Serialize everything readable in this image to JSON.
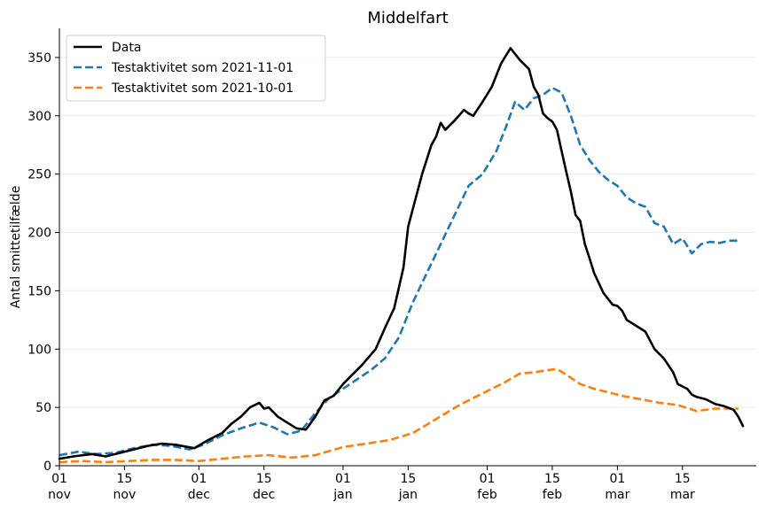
{
  "chart_data": {
    "type": "line",
    "title": "Middelfart",
    "xlabel": "",
    "ylabel": "Antal smittetilfælde",
    "ylim": [
      0,
      375
    ],
    "yticks": [
      0,
      50,
      100,
      150,
      200,
      250,
      300,
      350
    ],
    "grid": "horizontal",
    "legend_position": "top-left",
    "xlim": [
      "2021-11-01",
      "2022-03-28"
    ],
    "xticks": [
      {
        "date": "2021-11-01",
        "day": "01",
        "month": "nov"
      },
      {
        "date": "2021-11-15",
        "day": "15",
        "month": "nov"
      },
      {
        "date": "2021-12-01",
        "day": "01",
        "month": "dec"
      },
      {
        "date": "2021-12-15",
        "day": "15",
        "month": "dec"
      },
      {
        "date": "2022-01-01",
        "day": "01",
        "month": "jan"
      },
      {
        "date": "2022-01-15",
        "day": "15",
        "month": "jan"
      },
      {
        "date": "2022-02-01",
        "day": "01",
        "month": "feb"
      },
      {
        "date": "2022-02-15",
        "day": "15",
        "month": "feb"
      },
      {
        "date": "2022-03-01",
        "day": "01",
        "month": "mar"
      },
      {
        "date": "2022-03-15",
        "day": "15",
        "month": "mar"
      }
    ],
    "series": [
      {
        "name": "Data",
        "color": "#000000",
        "style": "solid",
        "points": [
          [
            "2021-11-01",
            6
          ],
          [
            "2021-11-04",
            8
          ],
          [
            "2021-11-08",
            10
          ],
          [
            "2021-11-11",
            8
          ],
          [
            "2021-11-14",
            11
          ],
          [
            "2021-11-17",
            14
          ],
          [
            "2021-11-20",
            17
          ],
          [
            "2021-11-23",
            19
          ],
          [
            "2021-11-26",
            18
          ],
          [
            "2021-11-30",
            15
          ],
          [
            "2021-12-03",
            22
          ],
          [
            "2021-12-06",
            28
          ],
          [
            "2021-12-08",
            36
          ],
          [
            "2021-12-10",
            42
          ],
          [
            "2021-12-12",
            50
          ],
          [
            "2021-12-14",
            54
          ],
          [
            "2021-12-15",
            49
          ],
          [
            "2021-12-16",
            50
          ],
          [
            "2021-12-18",
            42
          ],
          [
            "2021-12-20",
            37
          ],
          [
            "2021-12-22",
            32
          ],
          [
            "2021-12-24",
            31
          ],
          [
            "2021-12-26",
            42
          ],
          [
            "2021-12-28",
            56
          ],
          [
            "2021-12-30",
            60
          ],
          [
            "2022-01-01",
            70
          ],
          [
            "2022-01-03",
            78
          ],
          [
            "2022-01-05",
            86
          ],
          [
            "2022-01-08",
            100
          ],
          [
            "2022-01-10",
            118
          ],
          [
            "2022-01-12",
            135
          ],
          [
            "2022-01-14",
            170
          ],
          [
            "2022-01-15",
            205
          ],
          [
            "2022-01-16",
            220
          ],
          [
            "2022-01-18",
            250
          ],
          [
            "2022-01-20",
            275
          ],
          [
            "2022-01-21",
            282
          ],
          [
            "2022-01-22",
            294
          ],
          [
            "2022-01-23",
            288
          ],
          [
            "2022-01-25",
            296
          ],
          [
            "2022-01-27",
            305
          ],
          [
            "2022-01-28",
            302
          ],
          [
            "2022-01-29",
            300
          ],
          [
            "2022-01-31",
            312
          ],
          [
            "2022-02-02",
            325
          ],
          [
            "2022-02-04",
            345
          ],
          [
            "2022-02-06",
            358
          ],
          [
            "2022-02-08",
            348
          ],
          [
            "2022-02-10",
            340
          ],
          [
            "2022-02-11",
            325
          ],
          [
            "2022-02-12",
            318
          ],
          [
            "2022-02-13",
            302
          ],
          [
            "2022-02-14",
            298
          ],
          [
            "2022-02-15",
            295
          ],
          [
            "2022-02-16",
            288
          ],
          [
            "2022-02-17",
            270
          ],
          [
            "2022-02-18",
            252
          ],
          [
            "2022-02-19",
            235
          ],
          [
            "2022-02-20",
            215
          ],
          [
            "2022-02-21",
            210
          ],
          [
            "2022-02-22",
            190
          ],
          [
            "2022-02-23",
            178
          ],
          [
            "2022-02-24",
            165
          ],
          [
            "2022-02-26",
            148
          ],
          [
            "2022-02-28",
            138
          ],
          [
            "2022-03-01",
            137
          ],
          [
            "2022-03-02",
            133
          ],
          [
            "2022-03-03",
            125
          ],
          [
            "2022-03-05",
            120
          ],
          [
            "2022-03-07",
            115
          ],
          [
            "2022-03-09",
            100
          ],
          [
            "2022-03-11",
            92
          ],
          [
            "2022-03-13",
            80
          ],
          [
            "2022-03-14",
            70
          ],
          [
            "2022-03-16",
            66
          ],
          [
            "2022-03-17",
            61
          ],
          [
            "2022-03-18",
            59
          ],
          [
            "2022-03-20",
            57
          ],
          [
            "2022-03-22",
            53
          ],
          [
            "2022-03-24",
            51
          ],
          [
            "2022-03-26",
            48
          ],
          [
            "2022-03-27",
            42
          ],
          [
            "2022-03-28",
            34
          ]
        ]
      },
      {
        "name": "Testaktivitet som 2021-11-01",
        "color": "#1f77b4",
        "style": "dashed",
        "points": [
          [
            "2021-11-01",
            9
          ],
          [
            "2021-11-05",
            12
          ],
          [
            "2021-11-09",
            10
          ],
          [
            "2021-11-13",
            11
          ],
          [
            "2021-11-17",
            15
          ],
          [
            "2021-11-21",
            18
          ],
          [
            "2021-11-25",
            17
          ],
          [
            "2021-11-29",
            14
          ],
          [
            "2021-12-02",
            18
          ],
          [
            "2021-12-06",
            26
          ],
          [
            "2021-12-10",
            32
          ],
          [
            "2021-12-14",
            37
          ],
          [
            "2021-12-17",
            33
          ],
          [
            "2021-12-20",
            27
          ],
          [
            "2021-12-23",
            30
          ],
          [
            "2021-12-26",
            45
          ],
          [
            "2021-12-29",
            58
          ],
          [
            "2022-01-01",
            66
          ],
          [
            "2022-01-04",
            74
          ],
          [
            "2022-01-07",
            82
          ],
          [
            "2022-01-10",
            92
          ],
          [
            "2022-01-13",
            110
          ],
          [
            "2022-01-16",
            140
          ],
          [
            "2022-01-19",
            165
          ],
          [
            "2022-01-22",
            190
          ],
          [
            "2022-01-25",
            215
          ],
          [
            "2022-01-28",
            240
          ],
          [
            "2022-01-31",
            250
          ],
          [
            "2022-02-03",
            270
          ],
          [
            "2022-02-05",
            290
          ],
          [
            "2022-02-07",
            312
          ],
          [
            "2022-02-09",
            305
          ],
          [
            "2022-02-11",
            315
          ],
          [
            "2022-02-13",
            318
          ],
          [
            "2022-02-15",
            324
          ],
          [
            "2022-02-17",
            320
          ],
          [
            "2022-02-19",
            300
          ],
          [
            "2022-02-21",
            275
          ],
          [
            "2022-02-23",
            262
          ],
          [
            "2022-02-25",
            252
          ],
          [
            "2022-02-27",
            245
          ],
          [
            "2022-03-01",
            240
          ],
          [
            "2022-03-03",
            230
          ],
          [
            "2022-03-05",
            225
          ],
          [
            "2022-03-07",
            222
          ],
          [
            "2022-03-09",
            208
          ],
          [
            "2022-03-11",
            205
          ],
          [
            "2022-03-13",
            190
          ],
          [
            "2022-03-15",
            195
          ],
          [
            "2022-03-17",
            182
          ],
          [
            "2022-03-19",
            190
          ],
          [
            "2022-03-21",
            192
          ],
          [
            "2022-03-23",
            191
          ],
          [
            "2022-03-25",
            193
          ],
          [
            "2022-03-27",
            193
          ]
        ]
      },
      {
        "name": "Testaktivitet som 2021-10-01",
        "color": "#ff7f0e",
        "style": "dashed",
        "points": [
          [
            "2021-11-01",
            3
          ],
          [
            "2021-11-06",
            4
          ],
          [
            "2021-11-11",
            3
          ],
          [
            "2021-11-16",
            4
          ],
          [
            "2021-11-21",
            5
          ],
          [
            "2021-11-26",
            5
          ],
          [
            "2021-12-01",
            4
          ],
          [
            "2021-12-06",
            6
          ],
          [
            "2021-12-11",
            8
          ],
          [
            "2021-12-16",
            9
          ],
          [
            "2021-12-21",
            7
          ],
          [
            "2021-12-26",
            9
          ],
          [
            "2022-01-01",
            16
          ],
          [
            "2022-01-06",
            19
          ],
          [
            "2022-01-11",
            22
          ],
          [
            "2022-01-16",
            28
          ],
          [
            "2022-01-21",
            40
          ],
          [
            "2022-01-26",
            52
          ],
          [
            "2022-01-31",
            62
          ],
          [
            "2022-02-05",
            72
          ],
          [
            "2022-02-08",
            79
          ],
          [
            "2022-02-11",
            80
          ],
          [
            "2022-02-14",
            82
          ],
          [
            "2022-02-16",
            83
          ],
          [
            "2022-02-18",
            78
          ],
          [
            "2022-02-21",
            70
          ],
          [
            "2022-02-24",
            66
          ],
          [
            "2022-02-27",
            63
          ],
          [
            "2022-03-02",
            60
          ],
          [
            "2022-03-06",
            57
          ],
          [
            "2022-03-10",
            54
          ],
          [
            "2022-03-14",
            52
          ],
          [
            "2022-03-18",
            47
          ],
          [
            "2022-03-22",
            49
          ],
          [
            "2022-03-27",
            49
          ]
        ]
      }
    ]
  }
}
